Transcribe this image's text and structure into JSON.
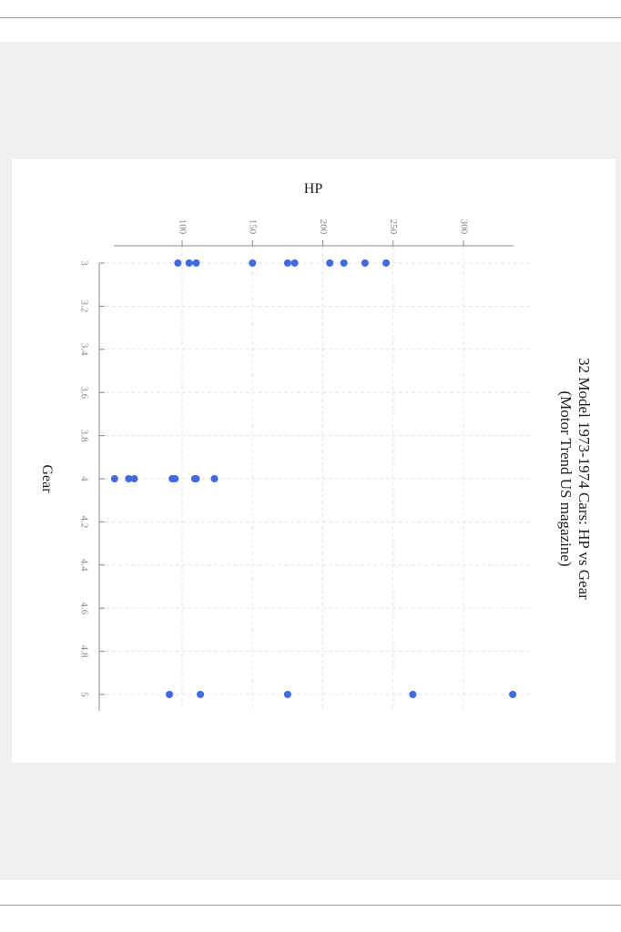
{
  "chart_data": {
    "type": "scatter",
    "title": "32 Model 1973-1974 Cars: HP vs Gear",
    "subtitle": "(Motor Trend US magazine)",
    "xlabel": "Gear",
    "ylabel": "HP",
    "xlim": [
      3,
      5
    ],
    "ylim": [
      52,
      335
    ],
    "x_ticks": [
      "3",
      "3.2",
      "3.4",
      "3.6",
      "3.8",
      "4",
      "4.2",
      "4.4",
      "4.6",
      "4.8",
      "5"
    ],
    "y_ticks": [
      "100",
      "150",
      "200",
      "250",
      "300"
    ],
    "grid": true,
    "orientation": "rotated-90-clockwise",
    "colors": {
      "point": "#4169e1",
      "axis": "#888888",
      "grid": "#e3e3e3",
      "text": "#222222"
    },
    "points": [
      {
        "x": 3,
        "y": 97
      },
      {
        "x": 3,
        "y": 105
      },
      {
        "x": 3,
        "y": 110
      },
      {
        "x": 3,
        "y": 150
      },
      {
        "x": 3,
        "y": 175
      },
      {
        "x": 3,
        "y": 180
      },
      {
        "x": 3,
        "y": 205
      },
      {
        "x": 3,
        "y": 215
      },
      {
        "x": 3,
        "y": 230
      },
      {
        "x": 3,
        "y": 245
      },
      {
        "x": 4,
        "y": 52
      },
      {
        "x": 4,
        "y": 62
      },
      {
        "x": 4,
        "y": 66
      },
      {
        "x": 4,
        "y": 93
      },
      {
        "x": 4,
        "y": 95
      },
      {
        "x": 4,
        "y": 109
      },
      {
        "x": 4,
        "y": 110
      },
      {
        "x": 4,
        "y": 123
      },
      {
        "x": 5,
        "y": 91
      },
      {
        "x": 5,
        "y": 113
      },
      {
        "x": 5,
        "y": 175
      },
      {
        "x": 5,
        "y": 264
      },
      {
        "x": 5,
        "y": 335
      }
    ]
  }
}
